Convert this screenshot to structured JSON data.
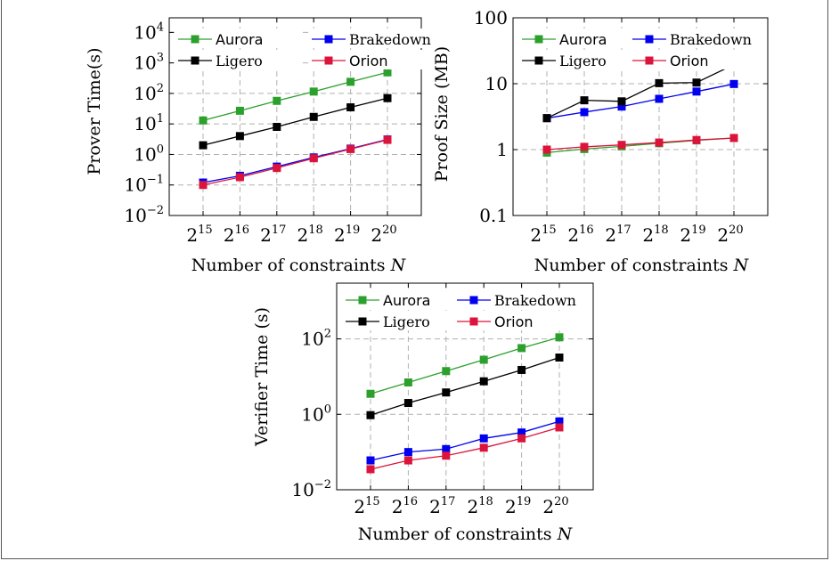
{
  "chart_data": [
    {
      "type": "line",
      "title": "",
      "xlabel": "Number of constraints N",
      "ylabel": "Prover Time(s)",
      "y_scale": "log",
      "ylim": [
        0.01,
        30000
      ],
      "y_ticks": [
        0.01,
        0.1,
        1,
        10,
        100,
        1000,
        10000
      ],
      "y_tick_labels": [
        [
          "10",
          "−2"
        ],
        [
          "10",
          "−1"
        ],
        [
          "10",
          "0"
        ],
        [
          "10",
          "1"
        ],
        [
          "10",
          "2"
        ],
        [
          "10",
          "3"
        ],
        [
          "10",
          "4"
        ]
      ],
      "x": [
        15,
        16,
        17,
        18,
        19,
        20
      ],
      "x_tick_labels": [
        [
          "2",
          "15"
        ],
        [
          "2",
          "16"
        ],
        [
          "2",
          "17"
        ],
        [
          "2",
          "18"
        ],
        [
          "2",
          "19"
        ],
        [
          "2",
          "20"
        ]
      ],
      "grid": true,
      "legend_position": "top",
      "series": [
        {
          "name": "Aurora",
          "color": "#2ca02c",
          "values": [
            13,
            27,
            57,
            115,
            240,
            490
          ]
        },
        {
          "name": "Brakedown",
          "color": "#0000ee",
          "values": [
            0.12,
            0.2,
            0.4,
            0.8,
            1.55,
            3.1
          ]
        },
        {
          "name": "Ligero",
          "color": "#000000",
          "values": [
            2,
            4,
            8,
            17,
            35,
            70
          ]
        },
        {
          "name": "Orion",
          "color": "#dc143c",
          "values": [
            0.1,
            0.18,
            0.36,
            0.75,
            1.5,
            3.0
          ]
        }
      ]
    },
    {
      "type": "line",
      "title": "",
      "xlabel": "Number of constraints N",
      "ylabel": "Proof Size (MB)",
      "y_scale": "log",
      "ylim": [
        0.1,
        100
      ],
      "y_ticks": [
        0.1,
        1,
        10,
        100
      ],
      "y_tick_labels": [
        [
          "0.1",
          ""
        ],
        [
          "1",
          ""
        ],
        [
          "10",
          ""
        ],
        [
          "100",
          ""
        ]
      ],
      "x": [
        15,
        16,
        17,
        18,
        19,
        20
      ],
      "x_tick_labels": [
        [
          "2",
          "15"
        ],
        [
          "2",
          "16"
        ],
        [
          "2",
          "17"
        ],
        [
          "2",
          "18"
        ],
        [
          "2",
          "19"
        ],
        [
          "2",
          "20"
        ]
      ],
      "grid": true,
      "legend_position": "top",
      "series": [
        {
          "name": "Aurora",
          "color": "#2ca02c",
          "values": [
            0.9,
            1.02,
            1.12,
            1.25,
            1.38,
            1.5
          ]
        },
        {
          "name": "Brakedown",
          "color": "#0000ee",
          "values": [
            3.0,
            3.7,
            4.5,
            5.9,
            7.6,
            9.9
          ]
        },
        {
          "name": "Ligero",
          "color": "#000000",
          "values": [
            3.0,
            5.6,
            5.4,
            10.2,
            10.4,
            19.5
          ]
        },
        {
          "name": "Orion",
          "color": "#dc143c",
          "values": [
            1.0,
            1.1,
            1.18,
            1.28,
            1.4,
            1.5
          ]
        }
      ]
    },
    {
      "type": "line",
      "title": "",
      "xlabel": "Number of constraints N",
      "ylabel": "Verifier Time (s)",
      "y_scale": "log",
      "ylim": [
        0.01,
        3000
      ],
      "y_ticks": [
        0.01,
        1,
        100
      ],
      "y_tick_labels": [
        [
          "10",
          "−2"
        ],
        [
          "10",
          "0"
        ],
        [
          "10",
          "2"
        ]
      ],
      "x": [
        15,
        16,
        17,
        18,
        19,
        20
      ],
      "x_tick_labels": [
        [
          "2",
          "15"
        ],
        [
          "2",
          "16"
        ],
        [
          "2",
          "17"
        ],
        [
          "2",
          "18"
        ],
        [
          "2",
          "19"
        ],
        [
          "2",
          "20"
        ]
      ],
      "grid": true,
      "legend_position": "top",
      "series": [
        {
          "name": "Aurora",
          "color": "#2ca02c",
          "values": [
            3.5,
            7,
            14,
            28,
            57,
            110
          ]
        },
        {
          "name": "Brakedown",
          "color": "#0000ee",
          "values": [
            0.06,
            0.1,
            0.12,
            0.23,
            0.33,
            0.65
          ]
        },
        {
          "name": "Ligero",
          "color": "#000000",
          "values": [
            0.95,
            2,
            3.8,
            7.5,
            15,
            32
          ]
        },
        {
          "name": "Orion",
          "color": "#dc143c",
          "values": [
            0.035,
            0.06,
            0.08,
            0.13,
            0.23,
            0.45
          ]
        }
      ]
    }
  ]
}
